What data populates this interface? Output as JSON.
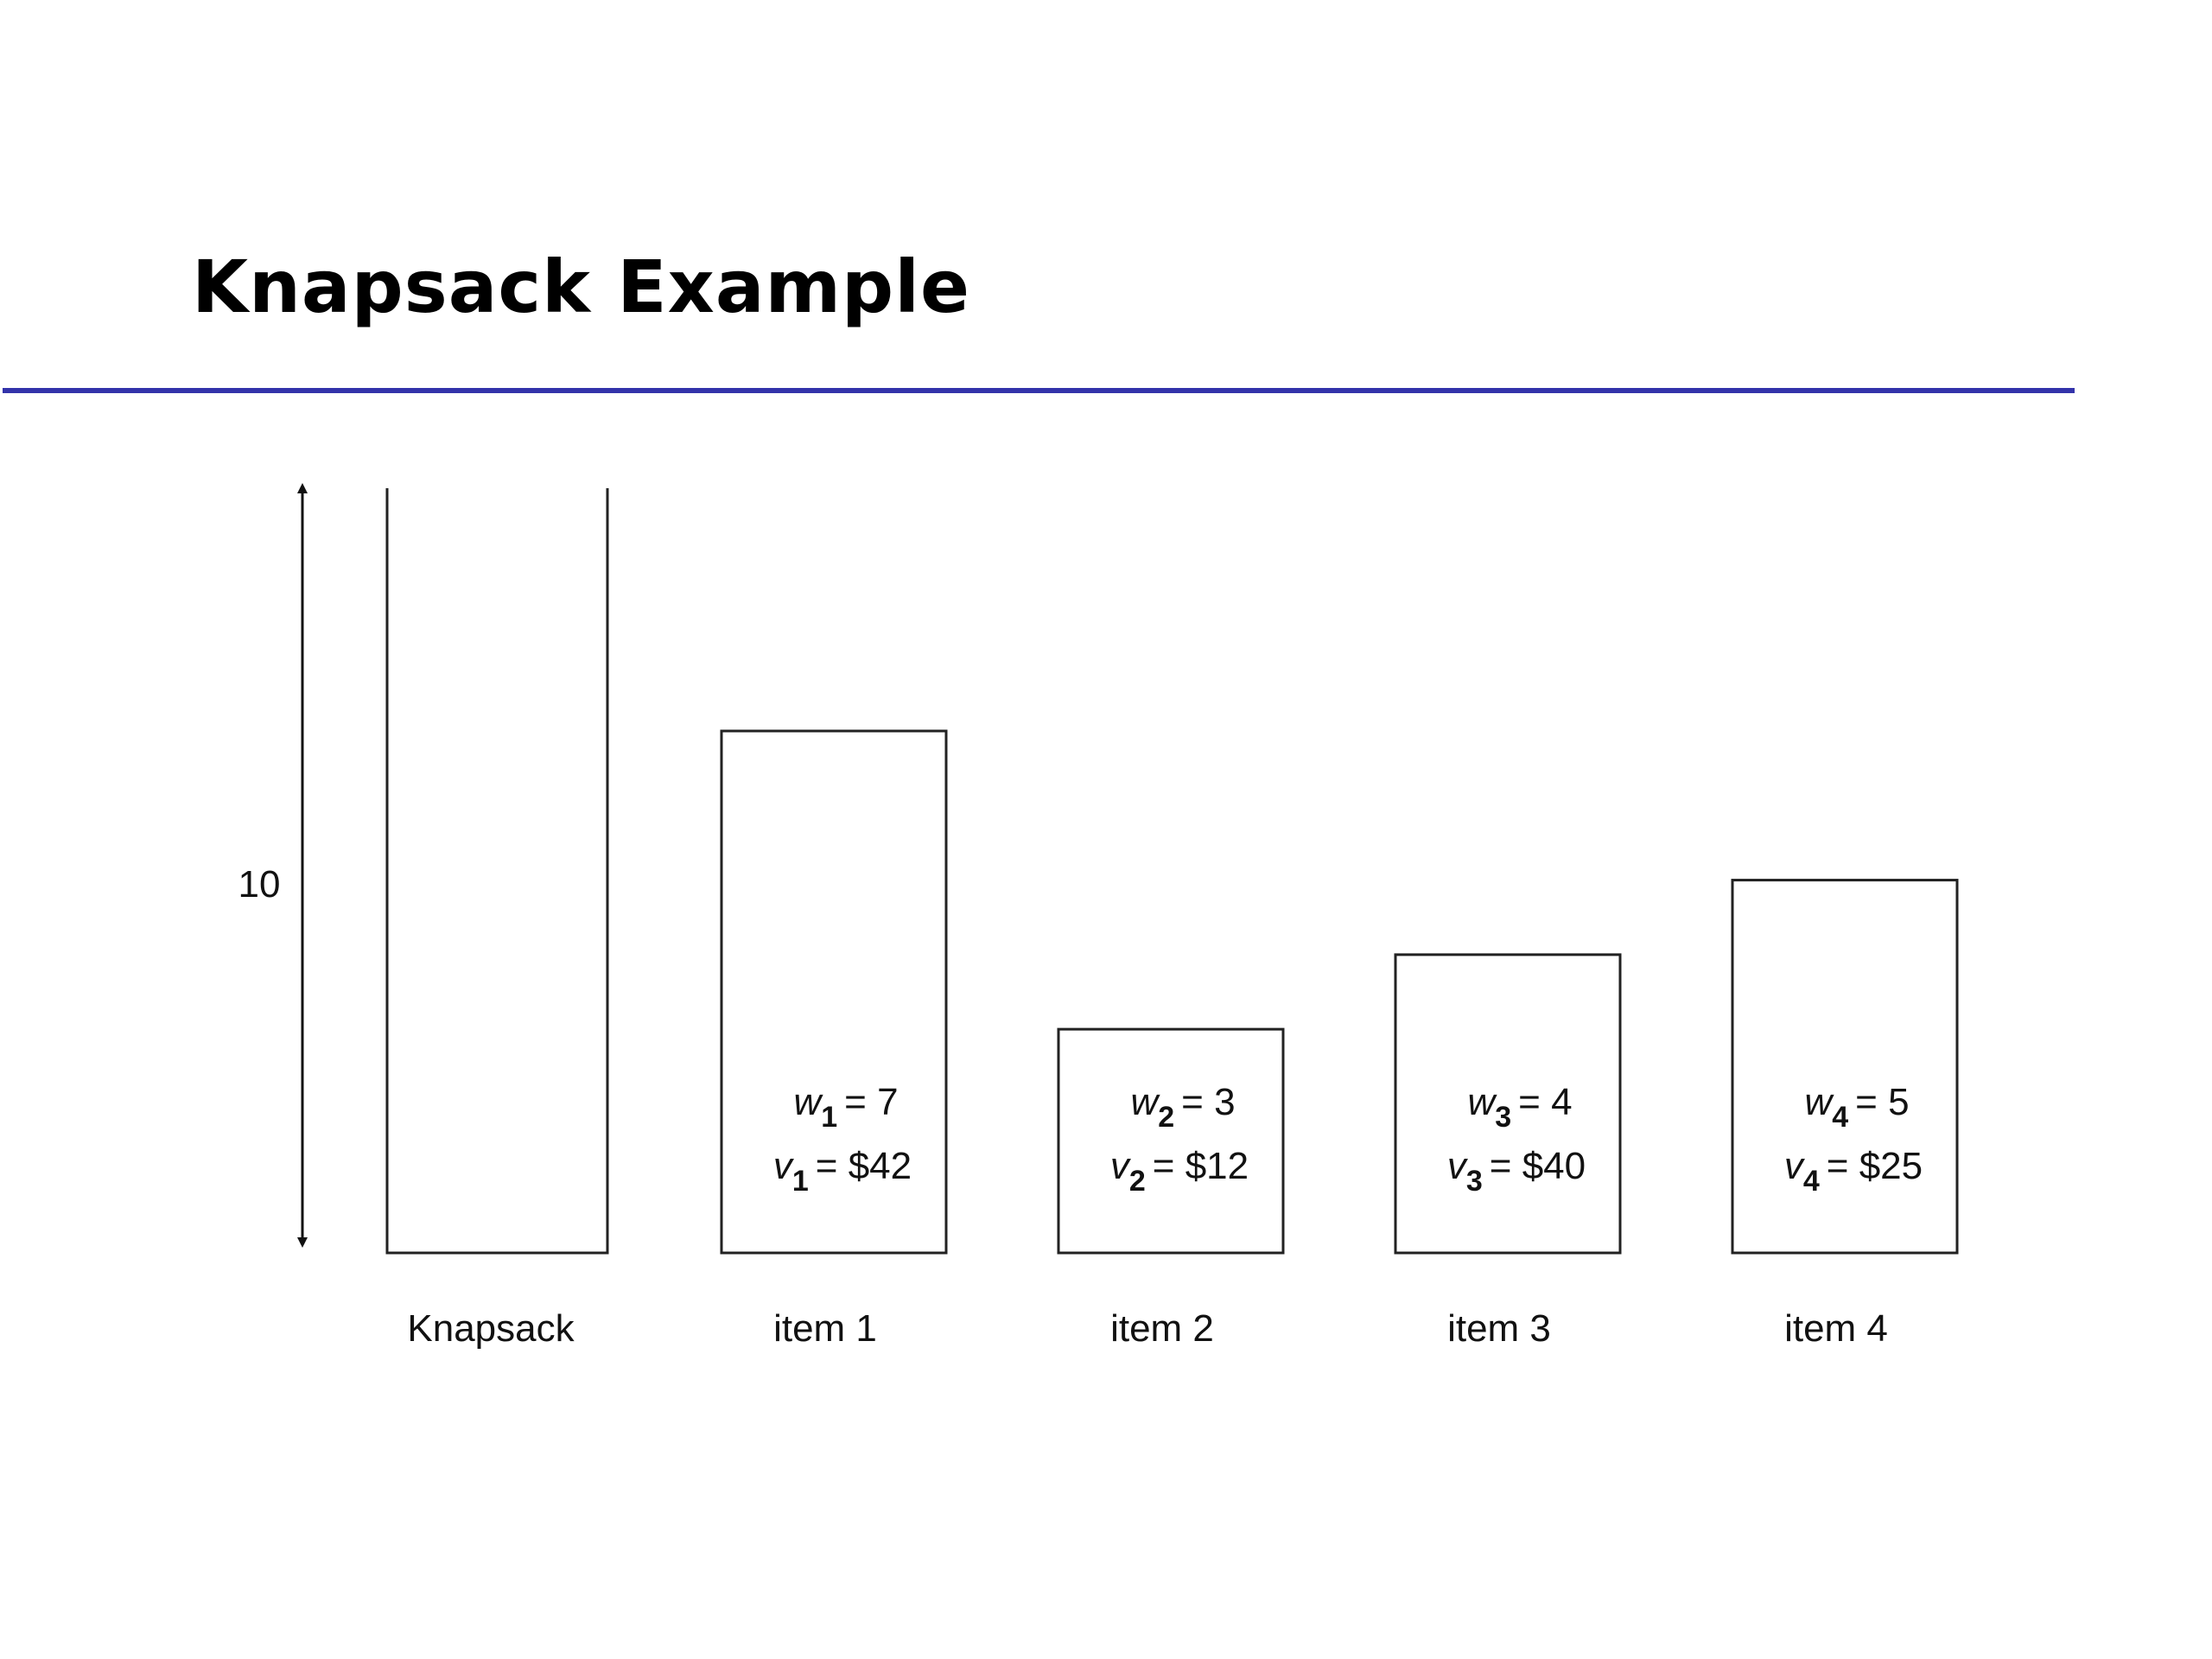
{
  "title": "Knapsack Example",
  "capacity_label": "10",
  "knapsack": {
    "label": "Knapsack",
    "capacity": 10
  },
  "items": [
    {
      "label": "item 1",
      "weight_var": "w",
      "value_var": "v",
      "index": "1",
      "weight": "= 7",
      "value": "= $42",
      "w": 7
    },
    {
      "label": "item 2",
      "weight_var": "w",
      "value_var": "v",
      "index": "2",
      "weight": "= 3",
      "value": "= $12",
      "w": 3
    },
    {
      "label": "item 3",
      "weight_var": "w",
      "value_var": "v",
      "index": "3",
      "weight": "= 4",
      "value": "= $40",
      "w": 4
    },
    {
      "label": "item 4",
      "weight_var": "w",
      "value_var": "v",
      "index": "4",
      "weight": "= 5",
      "value": "= $25",
      "w": 5
    }
  ],
  "colors": {
    "title_rule": "#3333aa",
    "lines": "#222222"
  }
}
